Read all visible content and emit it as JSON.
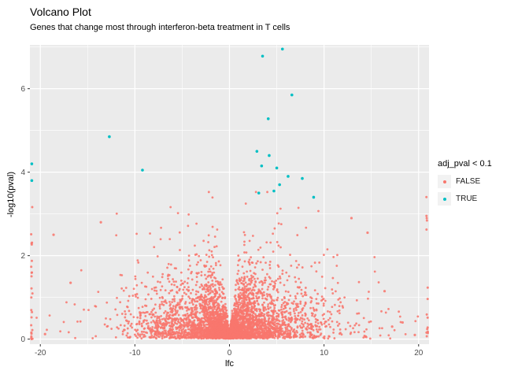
{
  "title": "Volcano Plot",
  "subtitle": "Genes that change most through interferon-beta treatment in T cells",
  "colors": {
    "panel_bg": "#EBEBEB",
    "grid_major": "#FFFFFF",
    "grid_minor": "#FFFFFF",
    "tick_mark": "#333333",
    "tick_label": "#4D4D4D",
    "false_points": "#F8766D",
    "true_points": "#00BFC4",
    "legend_key_bg": "#F2F2F2"
  },
  "chart_data": {
    "type": "scatter",
    "title": "Volcano Plot",
    "subtitle": "Genes that change most through interferon-beta treatment in T cells",
    "xlabel": "lfc",
    "ylabel": "-log10(pval)",
    "xlim": [
      -21.1,
      21.1
    ],
    "ylim": [
      -0.12,
      7.05
    ],
    "x_ticks": [
      -20,
      -10,
      0,
      10,
      20
    ],
    "x_minor_ticks": [
      -15,
      -5,
      5,
      15
    ],
    "y_ticks": [
      0,
      2,
      4,
      6
    ],
    "y_minor_ticks": [
      1,
      3,
      5,
      7
    ],
    "grid": true,
    "legend_title": "adj_pval < 0.1",
    "legend_position": "right",
    "legend_entries": [
      {
        "label": "FALSE",
        "color": "#F8766D"
      },
      {
        "label": "TRUE",
        "color": "#00BFC4"
      }
    ],
    "series": [
      {
        "name": "FALSE",
        "color": "#F8766D",
        "description": "Non-significant genes (adj_pval >= 0.1): dense volcano-shaped cloud centered at lfc 0, most points below -log10(pval) of 3.5, with columns of capped points at the extreme left and right lfc edges.",
        "cloud": {
          "count": 4500,
          "seed": 20,
          "x_mean_abs": 3.2,
          "x_cap": 20.4,
          "e_cap": 2.7,
          "env_scale_intercept": 0.35,
          "env_scale_slope": 0.55,
          "env_scale_max": 1.3,
          "taper_start": 13,
          "taper_range": 12,
          "taper_min": 0.25,
          "notch_intercept": 0.12,
          "notch_slope": 2.0,
          "y_offset": 0.015
        },
        "edge_columns": [
          {
            "x": -20.9,
            "count": 24,
            "y_max": 3.35,
            "pow": 1.4
          },
          {
            "x": 20.9,
            "count": 15,
            "y_max": 3.5,
            "pow": 1.6
          }
        ],
        "outlier_points": [
          [
            -18.6,
            2.5
          ],
          [
            14.6,
            2.55
          ],
          [
            16.4,
            1.15
          ],
          [
            18.3,
            0.4
          ],
          [
            -16.8,
            1.35
          ],
          [
            12.9,
            2.9
          ],
          [
            -13.6,
            2.8
          ],
          [
            -19.5,
            0.12
          ],
          [
            19.6,
            0.1
          ],
          [
            17.2,
            0.3
          ]
        ]
      },
      {
        "name": "TRUE",
        "color": "#00BFC4",
        "description": "Significant genes (adj_pval < 0.1)",
        "points": [
          [
            3.5,
            6.78
          ],
          [
            5.6,
            6.95
          ],
          [
            6.6,
            5.85
          ],
          [
            4.1,
            5.28
          ],
          [
            -12.7,
            4.85
          ],
          [
            2.9,
            4.5
          ],
          [
            4.2,
            4.4
          ],
          [
            3.4,
            4.15
          ],
          [
            5.0,
            4.1
          ],
          [
            -9.2,
            4.05
          ],
          [
            -20.9,
            4.2
          ],
          [
            -20.9,
            3.8
          ],
          [
            6.2,
            3.9
          ],
          [
            7.7,
            3.85
          ],
          [
            5.3,
            3.7
          ],
          [
            4.7,
            3.55
          ],
          [
            3.1,
            3.5
          ],
          [
            8.9,
            3.4
          ]
        ]
      }
    ]
  }
}
